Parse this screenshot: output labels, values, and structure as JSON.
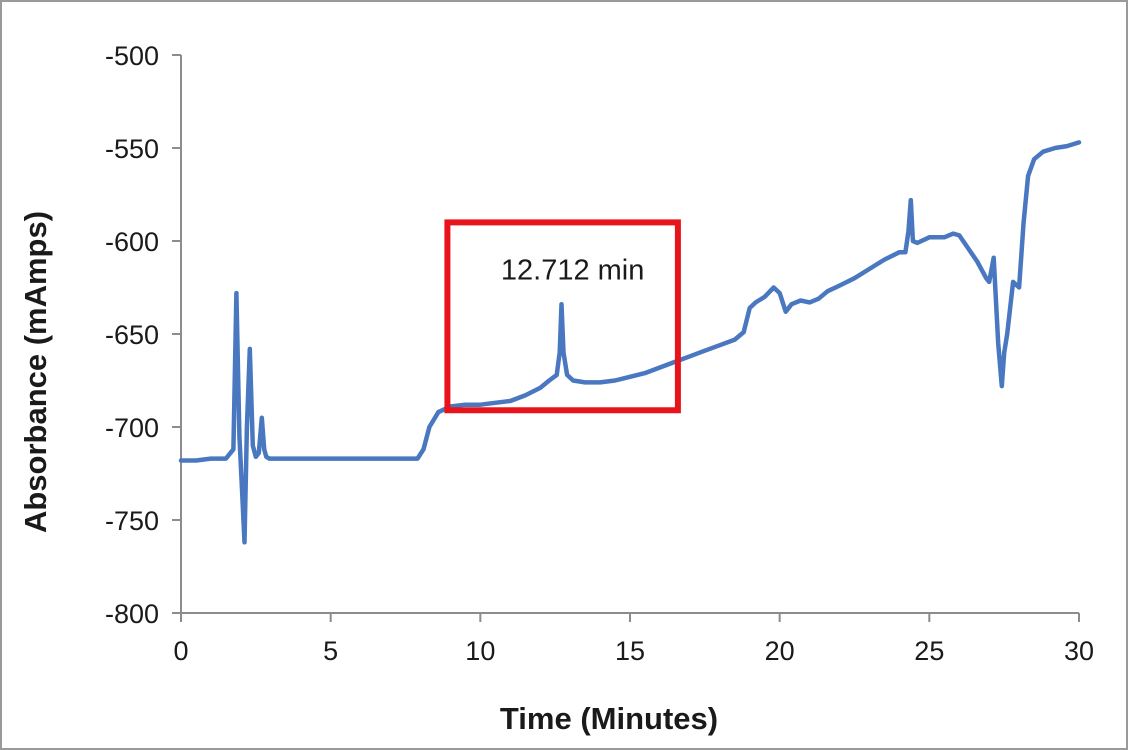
{
  "chart_data": {
    "type": "line",
    "xlabel": "Time  (Minutes)",
    "ylabel": "Absorbance  (mAmps)",
    "xlim": [
      0,
      30
    ],
    "ylim": [
      -800,
      -500
    ],
    "x_ticks": [
      0,
      5,
      10,
      15,
      20,
      25,
      30
    ],
    "y_ticks": [
      -500,
      -550,
      -600,
      -650,
      -700,
      -750,
      -800
    ],
    "x_tick_labels": [
      "0",
      "5",
      "10",
      "15",
      "20",
      "25",
      "30"
    ],
    "y_tick_labels": [
      "-500",
      "-550",
      "-600",
      "-650",
      "-700",
      "-750",
      "-800"
    ],
    "grid": false,
    "legend": "none",
    "annotation": {
      "text": "12.712  min",
      "box_x": [
        8.9,
        16.6
      ],
      "box_y": [
        -590,
        -691
      ]
    },
    "colors": {
      "line": "#4a78c0",
      "annotation_box": "#e8141b",
      "axis": "#8c8c8c"
    },
    "series": [
      {
        "x": [
          0,
          0.5,
          1.0,
          1.5,
          1.75,
          1.85,
          1.95,
          2.05,
          2.12,
          2.2,
          2.3,
          2.4,
          2.5,
          2.6,
          2.7,
          2.78,
          2.85,
          2.95,
          3.2,
          4,
          5,
          6,
          7,
          7.9,
          8.1,
          8.3,
          8.6,
          9,
          9.5,
          10,
          10.5,
          11,
          11.5,
          12,
          12.3,
          12.55,
          12.65,
          12.712,
          12.78,
          12.9,
          13.1,
          13.5,
          14,
          14.5,
          15,
          15.5,
          16,
          16.5,
          17,
          17.5,
          18,
          18.5,
          18.8,
          19.0,
          19.2,
          19.5,
          19.8,
          20.0,
          20.2,
          20.4,
          20.7,
          21.0,
          21.3,
          21.6,
          22.0,
          22.5,
          23.0,
          23.5,
          24.0,
          24.2,
          24.3,
          24.38,
          24.45,
          24.6,
          25.0,
          25.5,
          25.8,
          26.0,
          26.3,
          26.6,
          26.9,
          27.0,
          27.15,
          27.3,
          27.42,
          27.5,
          27.6,
          27.8,
          28.0,
          28.15,
          28.3,
          28.5,
          28.8,
          29.2,
          29.6,
          30.0
        ],
        "y": [
          -718,
          -718,
          -717,
          -717,
          -712,
          -628,
          -705,
          -738,
          -762,
          -700,
          -658,
          -710,
          -716,
          -714,
          -695,
          -712,
          -716,
          -717,
          -717,
          -717,
          -717,
          -717,
          -717,
          -717,
          -712,
          -700,
          -692,
          -689,
          -688,
          -688,
          -687,
          -686,
          -683,
          -679,
          -675,
          -672,
          -660,
          -634,
          -660,
          -672,
          -675,
          -676,
          -676,
          -675,
          -673,
          -671,
          -668,
          -665,
          -662,
          -659,
          -656,
          -653,
          -649,
          -636,
          -633,
          -630,
          -625,
          -628,
          -638,
          -634,
          -632,
          -633,
          -631,
          -627,
          -624,
          -620,
          -615,
          -610,
          -606,
          -606,
          -595,
          -578,
          -600,
          -601,
          -598,
          -598,
          -596,
          -597,
          -604,
          -611,
          -620,
          -622,
          -609,
          -655,
          -678,
          -660,
          -650,
          -622,
          -625,
          -590,
          -565,
          -556,
          -552,
          -550,
          -549,
          -547
        ]
      }
    ]
  }
}
